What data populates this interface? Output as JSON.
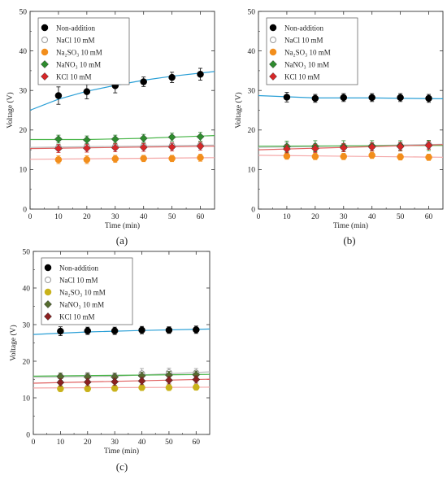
{
  "chart_data": [
    {
      "type": "scatter",
      "panel_label": "(a)",
      "xlabel": "Time (min)",
      "ylabel": "Voltage (V)",
      "xlim": [
        0,
        65
      ],
      "ylim": [
        0,
        50
      ],
      "xticks": [
        0,
        10,
        20,
        30,
        40,
        50,
        60
      ],
      "yticks": [
        0,
        10,
        20,
        30,
        40,
        50
      ],
      "legend": "top-left",
      "x": [
        10,
        20,
        30,
        40,
        50,
        60
      ],
      "series": [
        {
          "name": "Non-addition",
          "color": "#000000",
          "line_color": "#2a9fd6",
          "marker": "circle",
          "values": [
            28.7,
            29.7,
            31.2,
            32.2,
            33.3,
            34.1
          ],
          "errors": [
            2.2,
            1.8,
            1.8,
            1.2,
            1.3,
            1.5
          ],
          "fit": [
            [
              0,
              25.0
            ],
            [
              10,
              27.8
            ],
            [
              20,
              29.8
            ],
            [
              30,
              31.3
            ],
            [
              40,
              32.6
            ],
            [
              50,
              33.6
            ],
            [
              65,
              34.8
            ]
          ]
        },
        {
          "name": "NaCl 10 mM",
          "color": "#bbbbbb",
          "line_color": "#bbbbbb",
          "marker": "open-circle",
          "values": [
            15.6,
            15.8,
            15.8,
            15.9,
            16.0,
            16.1
          ],
          "errors": [
            0.8,
            0.8,
            0.8,
            0.8,
            0.8,
            0.8
          ],
          "fit": [
            [
              0,
              15.6
            ],
            [
              65,
              16.2
            ]
          ]
        },
        {
          "name": "Na₂SO₃ 10 mM",
          "color": "#f28e1c",
          "line_color": "#f4a7a7",
          "marker": "circle",
          "values": [
            12.5,
            12.5,
            12.7,
            12.8,
            12.8,
            13.0
          ],
          "errors": [
            1.0,
            1.0,
            0.9,
            0.8,
            0.8,
            0.9
          ],
          "fit": [
            [
              0,
              12.6
            ],
            [
              65,
              13.0
            ]
          ]
        },
        {
          "name": "NaNO₃ 10 mM",
          "color": "#2e8b2e",
          "line_color": "#49b649",
          "marker": "diamond",
          "values": [
            17.7,
            17.5,
            17.7,
            17.9,
            18.2,
            18.3
          ],
          "errors": [
            1.0,
            1.0,
            1.0,
            1.0,
            1.0,
            1.1
          ],
          "fit": [
            [
              0,
              17.6
            ],
            [
              20,
              17.6
            ],
            [
              40,
              17.9
            ],
            [
              65,
              18.6
            ]
          ]
        },
        {
          "name": "KCl 10 mM",
          "color": "#d62728",
          "line_color": "#e06060",
          "marker": "diamond",
          "values": [
            15.3,
            15.4,
            15.5,
            15.6,
            15.7,
            15.9
          ],
          "errors": [
            1.0,
            1.0,
            1.0,
            1.0,
            1.0,
            1.0
          ],
          "fit": [
            [
              0,
              15.3
            ],
            [
              65,
              15.9
            ]
          ]
        }
      ]
    },
    {
      "type": "scatter",
      "panel_label": "(b)",
      "xlabel": "Time (min)",
      "ylabel": "Voltage (V)",
      "xlim": [
        0,
        65
      ],
      "ylim": [
        0,
        50
      ],
      "xticks": [
        0,
        10,
        20,
        30,
        40,
        50,
        60
      ],
      "yticks": [
        0,
        10,
        20,
        30,
        40,
        50
      ],
      "legend": "top-left",
      "x": [
        10,
        20,
        30,
        40,
        50,
        60
      ],
      "series": [
        {
          "name": "Non-addition",
          "color": "#000000",
          "line_color": "#2a9fd6",
          "marker": "circle",
          "values": [
            28.3,
            28.0,
            28.2,
            28.2,
            28.2,
            28.0
          ],
          "errors": [
            1.2,
            1.0,
            1.0,
            1.0,
            1.0,
            1.0
          ],
          "fit": [
            [
              0,
              28.7
            ],
            [
              20,
              28.1
            ],
            [
              40,
              28.1
            ],
            [
              65,
              27.9
            ]
          ]
        },
        {
          "name": "NaCl 10 mM",
          "color": "#bbbbbb",
          "line_color": "#bbbbbb",
          "marker": "open-circle",
          "values": [
            15.8,
            15.6,
            15.6,
            15.8,
            16.0,
            16.3
          ],
          "errors": [
            1.0,
            1.0,
            1.0,
            1.0,
            1.0,
            1.0
          ],
          "fit": [
            [
              0,
              15.6
            ],
            [
              65,
              16.4
            ]
          ]
        },
        {
          "name": "Na₂SO₃ 10 mM",
          "color": "#f28e1c",
          "line_color": "#f4a7a7",
          "marker": "circle",
          "values": [
            13.4,
            13.3,
            13.3,
            13.6,
            13.2,
            13.1
          ],
          "errors": [
            0.8,
            0.8,
            0.8,
            0.8,
            0.8,
            0.8
          ],
          "fit": [
            [
              0,
              13.6
            ],
            [
              65,
              13.1
            ]
          ]
        },
        {
          "name": "NaNO₃ 10 mM",
          "color": "#2e8b2e",
          "line_color": "#49b649",
          "marker": "diamond",
          "values": [
            15.8,
            15.9,
            15.9,
            16.0,
            16.0,
            16.1
          ],
          "errors": [
            1.4,
            1.4,
            1.4,
            1.3,
            1.3,
            1.3
          ],
          "fit": [
            [
              0,
              15.9
            ],
            [
              65,
              16.1
            ]
          ]
        },
        {
          "name": "KCl 10 mM",
          "color": "#d62728",
          "line_color": "#e06060",
          "marker": "diamond",
          "values": [
            15.2,
            15.3,
            15.5,
            15.7,
            15.8,
            16.1
          ],
          "errors": [
            1.0,
            1.0,
            1.0,
            1.0,
            1.0,
            1.0
          ],
          "fit": [
            [
              0,
              15.0
            ],
            [
              65,
              16.3
            ]
          ]
        }
      ]
    },
    {
      "type": "scatter",
      "panel_label": "(c)",
      "xlabel": "Time (min)",
      "ylabel": "Voltage (V)",
      "xlim": [
        0,
        65
      ],
      "ylim": [
        0,
        50
      ],
      "xticks": [
        0,
        10,
        20,
        30,
        40,
        50,
        60
      ],
      "yticks": [
        0,
        10,
        20,
        30,
        40,
        50
      ],
      "legend": "top-left",
      "x": [
        10,
        20,
        30,
        40,
        50,
        60
      ],
      "series": [
        {
          "name": "Non-addition",
          "color": "#000000",
          "line_color": "#2a9fd6",
          "marker": "circle",
          "values": [
            28.2,
            28.3,
            28.3,
            28.5,
            28.5,
            28.6
          ],
          "errors": [
            1.2,
            1.0,
            1.0,
            1.0,
            0.9,
            1.0
          ],
          "fit": [
            [
              0,
              27.3
            ],
            [
              20,
              28.0
            ],
            [
              40,
              28.4
            ],
            [
              65,
              28.8
            ]
          ]
        },
        {
          "name": "NaCl 10 mM",
          "color": "#bbbbbb",
          "line_color": "#bbbbbb",
          "marker": "open-circle",
          "values": [
            15.8,
            15.9,
            15.8,
            16.6,
            16.9,
            16.8
          ],
          "errors": [
            1.0,
            1.0,
            1.0,
            1.4,
            1.2,
            1.2
          ],
          "fit": [
            [
              0,
              15.6
            ],
            [
              30,
              15.9
            ],
            [
              65,
              17.1
            ]
          ]
        },
        {
          "name": "Na₂SO₃ 10 mM",
          "color": "#c9b21a",
          "line_color": "#f4a7a7",
          "marker": "circle",
          "values": [
            12.5,
            12.5,
            12.6,
            12.8,
            12.8,
            12.9
          ],
          "errors": [
            0.8,
            0.8,
            0.8,
            0.8,
            0.8,
            0.8
          ],
          "fit": [
            [
              0,
              12.7
            ],
            [
              65,
              12.9
            ]
          ]
        },
        {
          "name": "NaNO₃ 10 mM",
          "color": "#556b2f",
          "line_color": "#49b649",
          "marker": "diamond",
          "values": [
            15.8,
            15.7,
            15.7,
            16.0,
            16.2,
            16.3
          ],
          "errors": [
            1.0,
            1.0,
            1.0,
            1.0,
            1.0,
            1.0
          ],
          "fit": [
            [
              0,
              15.9
            ],
            [
              65,
              16.4
            ]
          ]
        },
        {
          "name": "KCl 10 mM",
          "color": "#8b2020",
          "line_color": "#e06060",
          "marker": "diamond",
          "values": [
            14.2,
            14.3,
            14.4,
            14.6,
            14.8,
            15.0
          ],
          "errors": [
            1.0,
            1.0,
            1.0,
            1.0,
            1.0,
            1.0
          ],
          "fit": [
            [
              0,
              14.0
            ],
            [
              65,
              15.1
            ]
          ]
        }
      ]
    }
  ]
}
